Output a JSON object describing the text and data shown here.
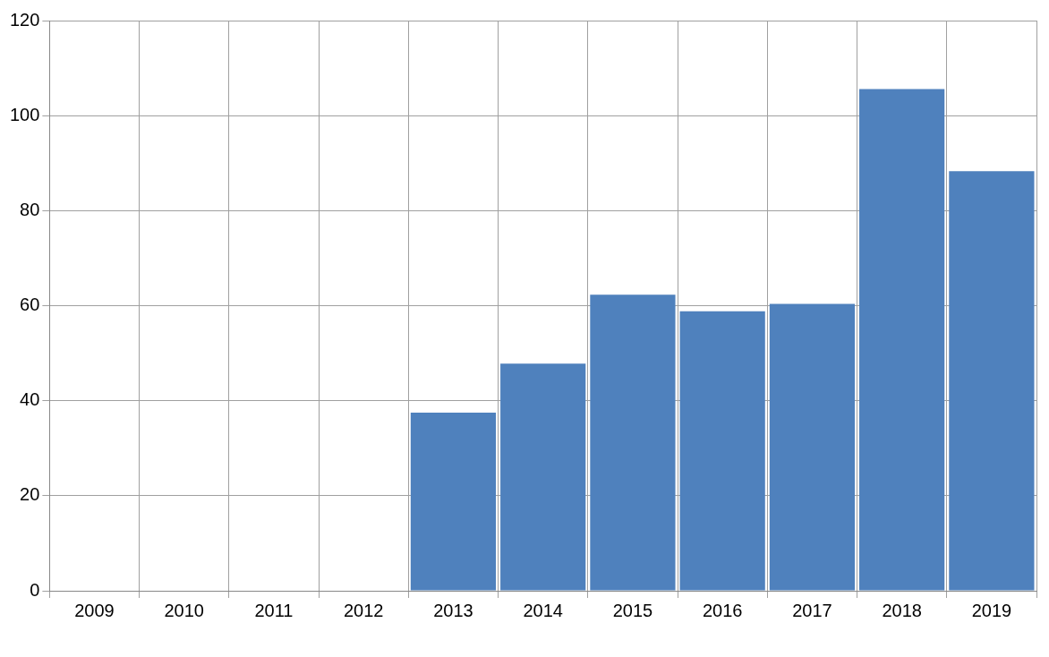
{
  "chart_data": {
    "type": "bar",
    "categories": [
      "2009",
      "2010",
      "2011",
      "2012",
      "2013",
      "2014",
      "2015",
      "2016",
      "2017",
      "2018",
      "2019"
    ],
    "values": [
      null,
      null,
      null,
      null,
      37.5,
      47.8,
      62.3,
      58.8,
      60.4,
      105.6,
      88.3
    ],
    "color": "#4f81bd",
    "ylim": [
      0,
      120
    ],
    "yticks": [
      0,
      20,
      40,
      60,
      80,
      100,
      120
    ],
    "grid": true,
    "legend": false
  }
}
